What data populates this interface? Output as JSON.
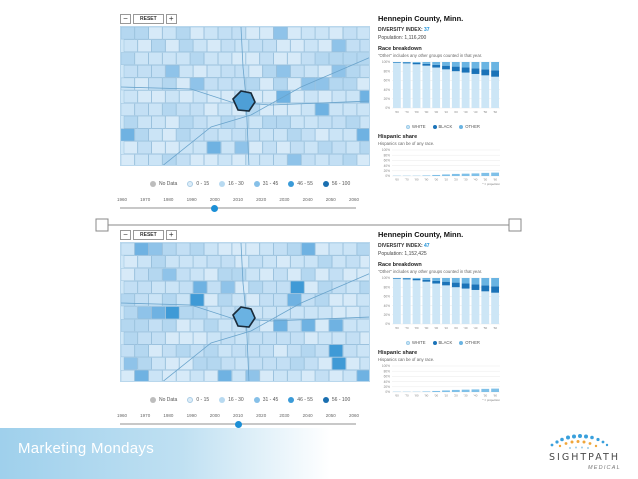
{
  "controls": {
    "zoom_out": "−",
    "reset": "RESET",
    "zoom_in": "+"
  },
  "legend": [
    {
      "label": "No Data",
      "color": "#bdbdbd"
    },
    {
      "label": "0 - 15",
      "color": "#dcecf8"
    },
    {
      "label": "16 - 30",
      "color": "#b8daf1"
    },
    {
      "label": "31 - 45",
      "color": "#86c0e8"
    },
    {
      "label": "46 - 55",
      "color": "#3b9bd8"
    },
    {
      "label": "56 - 100",
      "color": "#1a6fb0"
    }
  ],
  "timeline_years": [
    "1960",
    "1970",
    "1980",
    "1990",
    "2000",
    "2010",
    "2020",
    "2030",
    "2040",
    "2050",
    "2060"
  ],
  "chart_years": [
    "'60",
    "'70",
    "'80",
    "'90",
    "'00",
    "'10",
    "'20",
    "'30",
    "'40",
    "'50",
    "'60"
  ],
  "race_legend": [
    {
      "label": "WHITE",
      "color": "#cde6f6"
    },
    {
      "label": "BLACK",
      "color": "#1b73b8"
    },
    {
      "label": "OTHER",
      "color": "#6ab4e2"
    }
  ],
  "panels": [
    {
      "county": "Hennepin County, Minn.",
      "diversity_label": "DIVERSITY INDEX:",
      "diversity_value": "37",
      "population": "Population: 1,116,200",
      "race_title": "Race breakdown",
      "race_note": "\"Other\" includes any other groups counted in that year.",
      "hisp_title": "Hispanic share",
      "hisp_note": "Hispanics can be of any race.",
      "projection_note": "* = projection",
      "timeline_position": 0.4,
      "race_data": {
        "white": [
          98,
          97,
          95,
          92,
          88,
          84,
          80,
          77,
          74,
          71,
          68
        ],
        "black": [
          1,
          2,
          3,
          4,
          6,
          8,
          10,
          11,
          12,
          13,
          14
        ],
        "other": [
          1,
          1,
          2,
          4,
          6,
          8,
          10,
          12,
          14,
          16,
          18
        ]
      },
      "hisp_data": [
        1,
        1,
        1,
        2,
        4,
        6,
        8,
        9,
        10,
        12,
        13
      ]
    },
    {
      "county": "Hennepin County, Minn.",
      "diversity_label": "DIVERSITY INDEX:",
      "diversity_value": "47",
      "population": "Population: 1,152,425",
      "race_title": "Race breakdown",
      "race_note": "\"Other\" includes any other groups counted in that year.",
      "hisp_title": "Hispanic share",
      "hisp_note": "Hispanics can be of any race.",
      "projection_note": "* = projection",
      "timeline_position": 0.5,
      "race_data": {
        "white": [
          98,
          97,
          95,
          92,
          88,
          84,
          80,
          77,
          74,
          71,
          68
        ],
        "black": [
          1,
          2,
          3,
          4,
          6,
          8,
          10,
          11,
          12,
          13,
          14
        ],
        "other": [
          1,
          1,
          2,
          4,
          6,
          8,
          10,
          12,
          14,
          16,
          18
        ]
      },
      "hisp_data": [
        1,
        1,
        1,
        2,
        4,
        6,
        8,
        9,
        10,
        12,
        13
      ]
    }
  ],
  "footer": {
    "title": "Marketing Mondays"
  },
  "logo": {
    "word": "SIGHTPATH",
    "sub": "MEDICAL"
  }
}
